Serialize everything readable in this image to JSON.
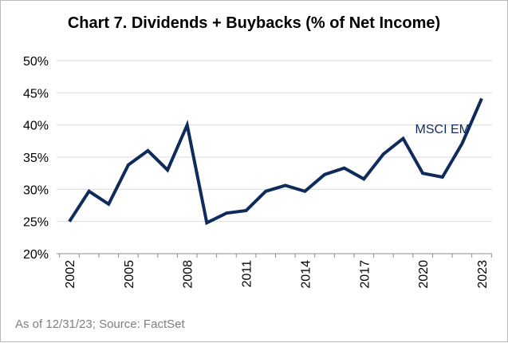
{
  "chart_data": {
    "type": "line",
    "title": "Chart 7. Dividends + Buybacks (% of Net Income)",
    "xlabel": "",
    "ylabel": "",
    "x": [
      2002,
      2003,
      2004,
      2005,
      2006,
      2007,
      2008,
      2009,
      2010,
      2011,
      2012,
      2013,
      2014,
      2015,
      2016,
      2017,
      2018,
      2019,
      2020,
      2021,
      2022,
      2023
    ],
    "x_tick_labels": [
      "2002",
      "2005",
      "2008",
      "2011",
      "2014",
      "2017",
      "2020",
      "2023"
    ],
    "y_tick_labels": [
      "20%",
      "25%",
      "30%",
      "35%",
      "40%",
      "45%",
      "50%"
    ],
    "ylim": [
      20,
      50
    ],
    "y_unit": "%",
    "grid": "horizontal",
    "series": [
      {
        "name": "MSCI EM",
        "color": "#0f2b5b",
        "values": [
          25.0,
          29.7,
          27.7,
          33.8,
          36.0,
          33.0,
          40.0,
          24.8,
          26.3,
          26.7,
          29.7,
          30.6,
          29.7,
          32.3,
          33.3,
          31.6,
          35.5,
          37.9,
          32.5,
          31.9,
          37.1,
          44.1
        ]
      }
    ],
    "footnote": "As of 12/31/23; Source: FactSet"
  }
}
